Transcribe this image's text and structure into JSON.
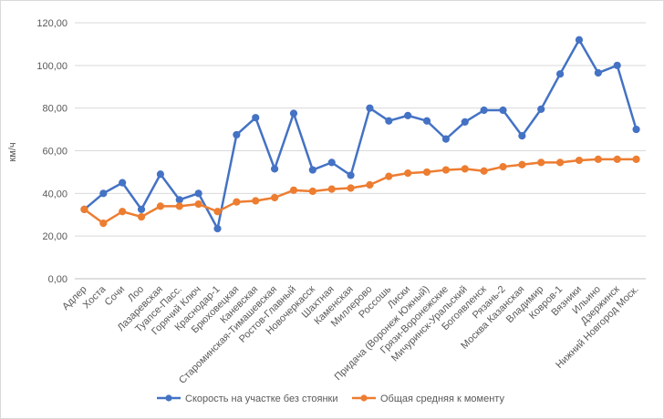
{
  "chart_data": {
    "type": "line",
    "title": "",
    "xlabel": "",
    "ylabel": "км/ч",
    "ylim": [
      0,
      120
    ],
    "yticks": [
      "0,00",
      "20,00",
      "40,00",
      "60,00",
      "80,00",
      "100,00",
      "120,00"
    ],
    "yticks_values": [
      0,
      20,
      40,
      60,
      80,
      100,
      120
    ],
    "grid": true,
    "legend_position": "bottom",
    "categories": [
      "Адлер",
      "Хоста",
      "Сочи",
      "Лоо",
      "Лазаревская",
      "Туапсе-Пасс.",
      "Горячий Ключ",
      "Краснодар-1",
      "Брюховецкая",
      "Каневская",
      "Староминская-Тимашевская",
      "Ростов-Главный",
      "Новочеркасск",
      "Шахтная",
      "Каменская",
      "Миллерово",
      "Россошь",
      "Лиски",
      "Придача (Воронеж Южный)",
      "Грязи-Воронежские",
      "Мичуринск-Уральский",
      "Богоявленск",
      "Рязань-2",
      "Москва Казанская",
      "Владимир",
      "Ковров-1",
      "Вязники",
      "Ильино",
      "Дзержинск",
      "Нижний Новгород Моск."
    ],
    "series": [
      {
        "name": "Скорость на участке без стоянки",
        "color": "#4472c4",
        "values": [
          32.5,
          40.0,
          45.0,
          32.5,
          49.0,
          37.0,
          40.0,
          23.5,
          67.5,
          75.5,
          51.5,
          77.5,
          51.0,
          54.5,
          48.5,
          80.0,
          74.0,
          76.5,
          74.0,
          65.5,
          73.5,
          79.0,
          79.0,
          67.0,
          79.5,
          96.0,
          112.0,
          96.5,
          100.0,
          70.0
        ]
      },
      {
        "name": "Общая средняя к моменту",
        "color": "#ed7d31",
        "values": [
          32.5,
          26.0,
          31.5,
          29.0,
          34.0,
          34.0,
          35.0,
          31.5,
          36.0,
          36.5,
          38.0,
          41.5,
          41.0,
          42.0,
          42.5,
          44.0,
          48.0,
          49.5,
          50.0,
          51.0,
          51.5,
          50.5,
          52.5,
          53.5,
          54.5,
          54.5,
          55.5,
          56.0,
          56.0,
          56.0
        ]
      }
    ]
  }
}
